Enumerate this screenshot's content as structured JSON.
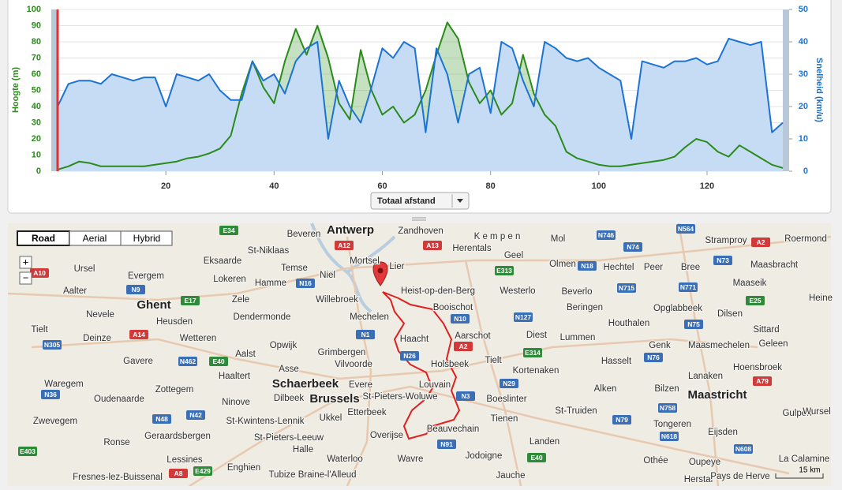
{
  "chart_data": {
    "type": "line",
    "y_label": "Hoogte (m)",
    "y2_label": "Snelheid (km/u)",
    "x_selector": "Totaal afstand",
    "xlim": [
      0,
      134
    ],
    "xticks": [
      20,
      40,
      60,
      80,
      100,
      120
    ],
    "ylim": [
      0,
      100
    ],
    "yticks": [
      0,
      10,
      20,
      30,
      40,
      50,
      60,
      70,
      80,
      90,
      100
    ],
    "y2lim": [
      0,
      50
    ],
    "y2ticks": [
      0,
      10,
      20,
      30,
      40,
      50
    ],
    "grid": true,
    "x": [
      0,
      2,
      4,
      6,
      8,
      10,
      12,
      14,
      16,
      18,
      20,
      22,
      24,
      26,
      28,
      30,
      32,
      34,
      36,
      38,
      40,
      42,
      44,
      46,
      48,
      50,
      52,
      54,
      56,
      58,
      60,
      62,
      64,
      66,
      68,
      70,
      72,
      74,
      76,
      78,
      80,
      82,
      84,
      86,
      88,
      90,
      92,
      94,
      96,
      98,
      100,
      102,
      104,
      106,
      108,
      110,
      112,
      114,
      116,
      118,
      120,
      122,
      124,
      126,
      128,
      130,
      132,
      134
    ],
    "series": [
      {
        "name": "Hoogte (m)",
        "color": "#2a8a1a",
        "fill": "rgba(90,170,80,0.35)",
        "values": [
          1,
          3,
          6,
          5,
          3,
          3,
          3,
          3,
          3,
          4,
          5,
          6,
          8,
          9,
          11,
          14,
          22,
          48,
          68,
          52,
          42,
          68,
          88,
          72,
          90,
          70,
          42,
          32,
          75,
          50,
          35,
          40,
          30,
          35,
          50,
          72,
          92,
          82,
          55,
          42,
          50,
          35,
          42,
          72,
          48,
          35,
          28,
          12,
          8,
          6,
          4,
          3,
          3,
          4,
          5,
          6,
          7,
          9,
          15,
          20,
          18,
          12,
          9,
          16,
          12,
          8,
          4,
          2
        ]
      },
      {
        "name": "Snelheid (km/u)",
        "color": "#1b73d4",
        "fill": "#c6dcf5",
        "axis": "y2",
        "values": [
          20,
          27,
          28,
          28,
          27,
          30,
          29,
          28,
          29,
          29,
          20,
          30,
          29,
          28,
          30,
          25,
          22,
          22,
          34,
          28,
          30,
          24,
          34,
          38,
          40,
          10,
          28,
          20,
          15,
          26,
          38,
          35,
          40,
          38,
          12,
          38,
          30,
          15,
          30,
          32,
          18,
          40,
          38,
          28,
          20,
          40,
          38,
          35,
          34,
          35,
          32,
          30,
          28,
          10,
          34,
          33,
          32,
          34,
          34,
          35,
          33,
          34,
          41,
          40,
          39,
          40,
          12,
          15
        ]
      }
    ]
  },
  "map": {
    "buttons": [
      "Road",
      "Aerial",
      "Hybrid"
    ],
    "zoom": [
      "+",
      "−"
    ],
    "scale": "15 km",
    "places": [
      "Antwerp",
      "Beveren",
      "Zandhoven",
      "St-Niklaas",
      "Temse",
      "Eksaarde",
      "Lier",
      "Mortsel",
      "Herentals",
      "Geel",
      "Mol",
      "Lokeren",
      "Hamme",
      "Niel",
      "Heist-op-den-Berg",
      "Westerlo",
      "Olmen",
      "Hechtel",
      "Peer",
      "Bree",
      "Ursel",
      "Evergem",
      "Maaseik",
      "Maasbracht",
      "Stramproy",
      "Roermond",
      "Aalter",
      "Ghent",
      "Zele",
      "Willebroek",
      "Booischot",
      "Beverlo",
      "Beringen",
      "Opglabbeek",
      "Heusden",
      "Dendermonde",
      "Mechelen",
      "Houthalen",
      "Nevele",
      "Tielt",
      "Deinze",
      "Wetteren",
      "Haacht",
      "Aarschot",
      "Diest",
      "Lummen",
      "Genk",
      "Maasmechelen",
      "Sittard",
      "Geleen",
      "Dilsen",
      "Opwijk",
      "Aalst",
      "Grimbergen",
      "Vilvoorde",
      "Holsbeek",
      "Tielt",
      "Kortenaken",
      "Hasselt",
      "Hoensbroek",
      "Lanaken",
      "Gavere",
      "Asse",
      "Haaltert",
      "Schaerbeek",
      "Evere",
      "Louvain",
      "Waregem",
      "Alken",
      "Bilzen",
      "Maastricht",
      "Zottegem",
      "Dilbeek",
      "Brussels",
      "St-Pieters-Woluwe",
      "Boeslinter",
      "Oudenaarde",
      "Ninove",
      "Etterbeek",
      "St-Truiden",
      "Tienen",
      "Zwevegem",
      "Ukkel",
      "St-Kwintens-Lennik",
      "Tongeren",
      "Gulpen",
      "Geraardsbergen",
      "St-Pieters-Leeuw",
      "Overijse",
      "Beauvechain",
      "Landen",
      "Eijsden",
      "Ronse",
      "Halle",
      "Wavre",
      "Jodoigne",
      "Othée",
      "Oupeye",
      "Lessines",
      "Enghien",
      "Waterloo",
      "La Calamine",
      "Tubize Braine-l'Alleud",
      "Fresnes-lez-Buissenal",
      "Jauche",
      "Herstal",
      "Pays de Herve",
      "K e m p e n",
      "Heine",
      "Wursel"
    ],
    "road_labels": [
      "E34",
      "A12",
      "A13",
      "N746",
      "N74",
      "N564",
      "A2",
      "N73",
      "E313",
      "N18",
      "N715",
      "N771",
      "E25",
      "N16",
      "N9",
      "E17",
      "N10",
      "N127",
      "N75",
      "A14",
      "N1",
      "E314",
      "A2",
      "N76",
      "N305",
      "N462",
      "E40",
      "N26",
      "N29",
      "A79",
      "N36",
      "N3",
      "N48",
      "N42",
      "N758",
      "N79",
      "N618",
      "N91",
      "E40",
      "N608",
      "E403",
      "A8",
      "E429",
      "A10"
    ]
  }
}
